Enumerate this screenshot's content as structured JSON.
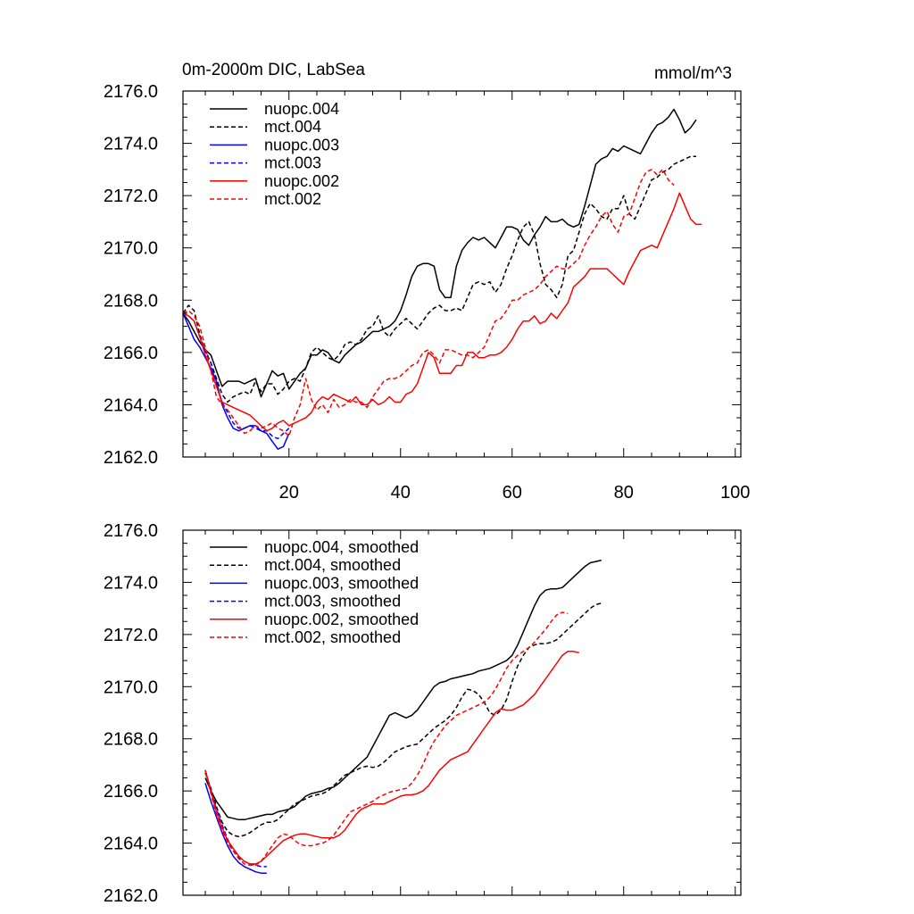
{
  "chart_data": [
    {
      "type": "line",
      "title": "0m-2000m DIC, LabSea",
      "units": "mmol/m^3",
      "xlim": [
        1,
        101
      ],
      "ylim": [
        2162,
        2176
      ],
      "x_ticks": [
        20,
        40,
        60,
        80,
        100
      ],
      "y_ticks": [
        2162,
        2164,
        2166,
        2168,
        2170,
        2172,
        2174,
        2176
      ],
      "y_tick_labels": [
        "2162.0",
        "2164.0",
        "2166.0",
        "2168.0",
        "2170.0",
        "2172.0",
        "2174.0",
        "2176.0"
      ],
      "x_tick_labels": [
        "20",
        "40",
        "60",
        "80",
        "100"
      ],
      "legend_position": "top-left",
      "series": [
        {
          "name": "nuopc.004",
          "color": "#000000",
          "dash": "solid",
          "x_start": 1,
          "values": [
            2167.5,
            2167.2,
            2166.8,
            2166.4,
            2166.1,
            2165.9,
            2165.3,
            2164.7,
            2164.9,
            2164.9,
            2164.9,
            2164.8,
            2164.9,
            2165.0,
            2164.3,
            2164.8,
            2165.3,
            2165.1,
            2165.2,
            2164.6,
            2164.9,
            2165.2,
            2165.4,
            2165.9,
            2165.9,
            2166.1,
            2166.0,
            2165.7,
            2165.6,
            2165.9,
            2166.1,
            2166.3,
            2166.4,
            2166.6,
            2166.8,
            2166.8,
            2166.9,
            2167.0,
            2167.2,
            2167.6,
            2168.2,
            2168.9,
            2169.3,
            2169.4,
            2169.4,
            2169.3,
            2168.4,
            2168.1,
            2168.1,
            2169.3,
            2169.9,
            2170.2,
            2170.4,
            2170.3,
            2170.4,
            2170.2,
            2170.0,
            2170.4,
            2170.8,
            2170.8,
            2170.7,
            2170.3,
            2170.1,
            2170.5,
            2170.8,
            2171.2,
            2171.0,
            2171.0,
            2171.1,
            2170.9,
            2170.8,
            2170.9,
            2171.6,
            2172.4,
            2173.2,
            2173.4,
            2173.5,
            2173.8,
            2173.7,
            2173.9,
            2173.8,
            2173.7,
            2173.6,
            2174.0,
            2174.4,
            2174.7,
            2174.8,
            2175.0,
            2175.3,
            2174.9,
            2174.4,
            2174.6,
            2174.9
          ]
        },
        {
          "name": "mct.004",
          "color": "#000000",
          "dash": "dashed",
          "x_start": 1,
          "values": [
            2167.5,
            2167.8,
            2167.6,
            2166.7,
            2166.0,
            2165.6,
            2165.0,
            2164.4,
            2164.1,
            2164.3,
            2164.4,
            2164.5,
            2164.4,
            2164.9,
            2164.5,
            2164.8,
            2164.8,
            2164.4,
            2164.6,
            2164.9,
            2165.0,
            2164.9,
            2165.4,
            2166.0,
            2166.2,
            2166.0,
            2165.8,
            2165.7,
            2165.9,
            2166.3,
            2166.4,
            2166.3,
            2166.5,
            2166.9,
            2167.0,
            2167.4,
            2166.8,
            2166.6,
            2166.9,
            2167.1,
            2167.3,
            2167.1,
            2166.9,
            2167.2,
            2167.5,
            2167.7,
            2167.8,
            2167.6,
            2167.6,
            2167.7,
            2167.6,
            2168.1,
            2168.6,
            2168.7,
            2168.6,
            2168.7,
            2168.3,
            2168.6,
            2169.2,
            2169.7,
            2170.3,
            2170.8,
            2171.0,
            2170.5,
            2169.4,
            2168.6,
            2168.4,
            2168.1,
            2168.6,
            2169.7,
            2169.9,
            2170.6,
            2171.3,
            2171.7,
            2171.5,
            2171.2,
            2171.1,
            2171.5,
            2171.5,
            2172.0,
            2171.3,
            2171.1,
            2171.6,
            2172.1,
            2172.6,
            2172.7,
            2172.9,
            2173.0,
            2173.2,
            2173.3,
            2173.4,
            2173.5,
            2173.5
          ]
        },
        {
          "name": "nuopc.003",
          "color": "#0000ff",
          "dash": "solid",
          "x_start": 1,
          "values": [
            2167.5,
            2167.0,
            2166.5,
            2166.2,
            2165.8,
            2165.4,
            2164.9,
            2164.0,
            2163.5,
            2163.1,
            2163.0,
            2163.1,
            2163.2,
            2163.2,
            2163.0,
            2162.9,
            2162.6,
            2162.3,
            2162.4,
            2162.9
          ]
        },
        {
          "name": "mct.003",
          "color": "#0000ff",
          "dash": "dashed",
          "x_start": 1,
          "values": [
            2167.5,
            2167.4,
            2167.2,
            2166.6,
            2166.1,
            2165.6,
            2164.8,
            2164.1,
            2163.7,
            2163.3,
            2163.1,
            2163.1,
            2163.2,
            2163.1,
            2163.0,
            2163.0,
            2162.8,
            2162.7,
            2162.9,
            2163.1
          ]
        },
        {
          "name": "nuopc.002",
          "color": "#ff0000",
          "dash": "solid",
          "x_start": 1,
          "values": [
            2167.5,
            2167.4,
            2167.2,
            2166.6,
            2165.9,
            2165.3,
            2164.7,
            2164.1,
            2164.0,
            2163.9,
            2163.8,
            2163.7,
            2163.6,
            2163.4,
            2163.2,
            2163.0,
            2163.1,
            2163.3,
            2163.4,
            2163.2,
            2163.3,
            2163.4,
            2163.5,
            2163.7,
            2164.1,
            2164.3,
            2164.2,
            2164.4,
            2164.3,
            2164.2,
            2164.1,
            2164.3,
            2164.0,
            2164.0,
            2164.2,
            2164.0,
            2164.1,
            2164.3,
            2164.1,
            2164.1,
            2164.4,
            2164.5,
            2164.8,
            2165.4,
            2166.0,
            2165.8,
            2165.2,
            2165.2,
            2165.2,
            2165.5,
            2165.5,
            2166.0,
            2166.0,
            2165.8,
            2165.8,
            2165.9,
            2165.9,
            2166.0,
            2166.2,
            2166.5,
            2166.9,
            2167.2,
            2167.2,
            2167.4,
            2167.1,
            2167.2,
            2167.5,
            2167.3,
            2167.6,
            2167.9,
            2168.5,
            2168.7,
            2168.9,
            2169.2,
            2169.2,
            2169.2,
            2169.2,
            2169.0,
            2168.8,
            2168.6,
            2169.1,
            2169.5,
            2169.9,
            2170.0,
            2170.1,
            2170.0,
            2170.5,
            2171.0,
            2171.5,
            2172.1,
            2171.6,
            2171.1,
            2170.9,
            2170.9
          ]
        },
        {
          "name": "mct.002",
          "color": "#ff0000",
          "dash": "dashed",
          "x_start": 1,
          "values": [
            2167.5,
            2167.6,
            2167.4,
            2167.0,
            2166.2,
            2165.3,
            2164.3,
            2164.0,
            2163.8,
            2163.5,
            2163.2,
            2162.9,
            2163.0,
            2163.2,
            2163.1,
            2163.2,
            2163.3,
            2163.1,
            2163.0,
            2162.8,
            2163.5,
            2164.0,
            2165.0,
            2164.2,
            2163.8,
            2164.0,
            2163.7,
            2164.2,
            2163.9,
            2164.0,
            2164.2,
            2164.1,
            2164.1,
            2163.9,
            2164.3,
            2164.6,
            2164.9,
            2165.0,
            2165.0,
            2165.1,
            2165.3,
            2165.5,
            2165.6,
            2166.0,
            2166.1,
            2165.9,
            2165.6,
            2166.1,
            2166.1,
            2166.0,
            2165.9,
            2165.9,
            2165.8,
            2166.0,
            2166.2,
            2166.7,
            2167.2,
            2167.3,
            2167.6,
            2168.0,
            2168.0,
            2168.2,
            2168.3,
            2168.4,
            2168.6,
            2168.9,
            2169.1,
            2169.3,
            2169.2,
            2169.2,
            2169.4,
            2169.6,
            2170.1,
            2170.5,
            2170.8,
            2171.2,
            2171.4,
            2170.9,
            2170.6,
            2171.2,
            2171.3,
            2171.9,
            2172.5,
            2172.9,
            2173.0,
            2172.8,
            2173.0,
            2172.6,
            2172.4
          ]
        }
      ]
    },
    {
      "type": "line",
      "xlim": [
        1,
        101
      ],
      "ylim": [
        2162,
        2176
      ],
      "x_ticks": [
        20,
        40,
        60,
        80,
        100
      ],
      "y_ticks": [
        2162,
        2164,
        2166,
        2168,
        2170,
        2172,
        2174,
        2176
      ],
      "y_tick_labels": [
        "2162.0",
        "2164.0",
        "2166.0",
        "2168.0",
        "2170.0",
        "2172.0",
        "2174.0",
        "2176.0"
      ],
      "legend_position": "top-left",
      "series": [
        {
          "name": "nuopc.004, smoothed",
          "color": "#000000",
          "dash": "solid",
          "x_start": 5,
          "values": [
            2166.5,
            2166.0,
            2165.6,
            2165.3,
            2165.0,
            2164.95,
            2164.9,
            2164.9,
            2164.95,
            2165.0,
            2165.05,
            2165.1,
            2165.1,
            2165.2,
            2165.25,
            2165.3,
            2165.4,
            2165.6,
            2165.8,
            2165.9,
            2165.95,
            2166.0,
            2166.1,
            2166.15,
            2166.3,
            2166.5,
            2166.7,
            2166.9,
            2167.1,
            2167.3,
            2167.7,
            2168.1,
            2168.5,
            2168.9,
            2169.0,
            2168.9,
            2168.8,
            2168.9,
            2169.1,
            2169.4,
            2169.7,
            2170.0,
            2170.15,
            2170.2,
            2170.3,
            2170.35,
            2170.4,
            2170.45,
            2170.5,
            2170.6,
            2170.65,
            2170.7,
            2170.8,
            2170.9,
            2171.0,
            2171.2,
            2171.6,
            2172.1,
            2172.6,
            2173.1,
            2173.5,
            2173.7,
            2173.75,
            2173.75,
            2173.8,
            2174.0,
            2174.2,
            2174.4,
            2174.6,
            2174.75,
            2174.8,
            2174.85
          ]
        },
        {
          "name": "mct.004, smoothed",
          "color": "#000000",
          "dash": "dashed",
          "x_start": 5,
          "values": [
            2166.7,
            2166.1,
            2165.4,
            2164.8,
            2164.45,
            2164.3,
            2164.25,
            2164.3,
            2164.4,
            2164.55,
            2164.7,
            2164.8,
            2164.8,
            2164.9,
            2165.1,
            2165.3,
            2165.5,
            2165.6,
            2165.7,
            2165.8,
            2165.85,
            2165.9,
            2166.0,
            2166.2,
            2166.4,
            2166.6,
            2166.7,
            2166.8,
            2166.9,
            2166.95,
            2166.9,
            2166.95,
            2167.1,
            2167.3,
            2167.5,
            2167.6,
            2167.7,
            2167.75,
            2167.8,
            2168.0,
            2168.2,
            2168.4,
            2168.55,
            2168.7,
            2168.9,
            2169.2,
            2169.6,
            2169.9,
            2169.85,
            2169.7,
            2169.4,
            2169.0,
            2168.9,
            2169.1,
            2169.5,
            2170.2,
            2170.8,
            2171.2,
            2171.5,
            2171.6,
            2171.65,
            2171.65,
            2171.7,
            2171.8,
            2172.0,
            2172.2,
            2172.4,
            2172.6,
            2172.8,
            2173.0,
            2173.15,
            2173.2
          ]
        },
        {
          "name": "nuopc.003, smoothed",
          "color": "#0000ff",
          "dash": "solid",
          "x_start": 5,
          "values": [
            2166.3,
            2165.6,
            2165.0,
            2164.4,
            2163.9,
            2163.5,
            2163.25,
            2163.1,
            2163.0,
            2162.9,
            2162.85,
            2162.85
          ]
        },
        {
          "name": "mct.003, smoothed",
          "color": "#0000ff",
          "dash": "dashed",
          "x_start": 5,
          "values": [
            2166.8,
            2166.0,
            2165.3,
            2164.7,
            2164.15,
            2163.7,
            2163.45,
            2163.3,
            2163.2,
            2163.15,
            2163.1,
            2163.1
          ]
        },
        {
          "name": "nuopc.002, smoothed",
          "color": "#ff0000",
          "dash": "solid",
          "x_start": 5,
          "values": [
            2166.8,
            2166.0,
            2165.2,
            2164.6,
            2164.1,
            2163.8,
            2163.5,
            2163.3,
            2163.2,
            2163.2,
            2163.3,
            2163.5,
            2163.7,
            2163.9,
            2164.1,
            2164.2,
            2164.3,
            2164.35,
            2164.35,
            2164.3,
            2164.25,
            2164.2,
            2164.2,
            2164.2,
            2164.3,
            2164.5,
            2164.8,
            2165.1,
            2165.3,
            2165.4,
            2165.5,
            2165.5,
            2165.5,
            2165.6,
            2165.7,
            2165.8,
            2165.85,
            2165.85,
            2165.9,
            2166.0,
            2166.2,
            2166.5,
            2166.8,
            2167.0,
            2167.2,
            2167.3,
            2167.4,
            2167.5,
            2167.8,
            2168.1,
            2168.4,
            2168.7,
            2169.0,
            2169.15,
            2169.1,
            2169.1,
            2169.2,
            2169.3,
            2169.5,
            2169.7,
            2170.0,
            2170.3,
            2170.6,
            2170.9,
            2171.2,
            2171.35,
            2171.35,
            2171.3
          ]
        },
        {
          "name": "mct.002, smoothed",
          "color": "#ff0000",
          "dash": "dashed",
          "x_start": 5,
          "values": [
            2166.8,
            2165.9,
            2165.1,
            2164.5,
            2164.0,
            2163.7,
            2163.4,
            2163.2,
            2163.15,
            2163.15,
            2163.3,
            2163.6,
            2163.9,
            2164.2,
            2164.35,
            2164.3,
            2164.1,
            2163.95,
            2163.9,
            2163.9,
            2163.95,
            2164.0,
            2164.1,
            2164.3,
            2164.6,
            2164.9,
            2165.2,
            2165.3,
            2165.4,
            2165.5,
            2165.6,
            2165.75,
            2165.85,
            2165.95,
            2166.0,
            2166.05,
            2166.1,
            2166.3,
            2166.6,
            2167.0,
            2167.5,
            2167.9,
            2168.2,
            2168.5,
            2168.7,
            2168.9,
            2169.0,
            2169.1,
            2169.2,
            2169.3,
            2169.4,
            2169.6,
            2169.9,
            2170.3,
            2170.7,
            2171.0,
            2171.2,
            2171.35,
            2171.5,
            2171.7,
            2171.95,
            2172.2,
            2172.5,
            2172.75,
            2172.85,
            2172.8
          ]
        }
      ]
    }
  ]
}
